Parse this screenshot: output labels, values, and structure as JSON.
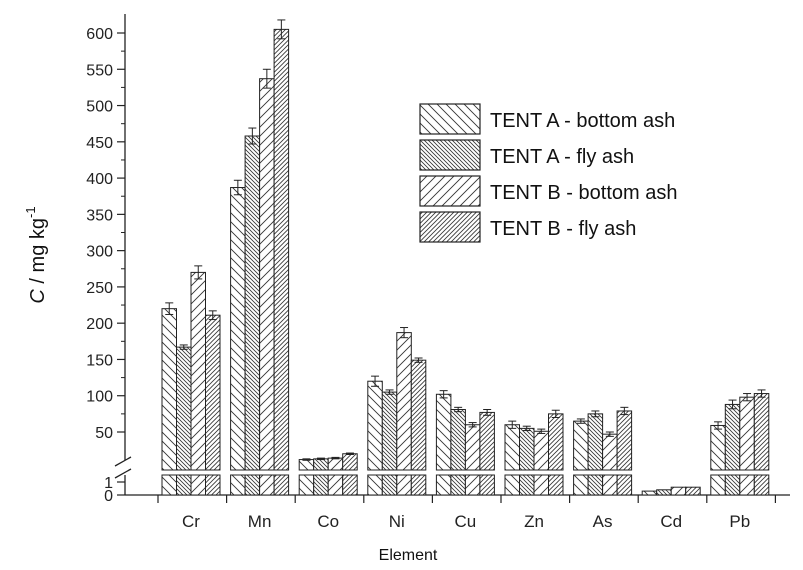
{
  "chart_data": {
    "type": "bar",
    "xlabel": "Element",
    "ylabel": {
      "symbol": "C",
      "sep": " / mg kg",
      "exp": "-1"
    },
    "categories": [
      "Cr",
      "Mn",
      "Co",
      "Ni",
      "Cu",
      "Zn",
      "As",
      "Cd",
      "Pb"
    ],
    "y_ticks_upper": [
      "50",
      "100",
      "150",
      "200",
      "250",
      "300",
      "350",
      "400",
      "450",
      "500",
      "550",
      "600"
    ],
    "y_ticks_lower": [
      "0",
      "1"
    ],
    "y_axis_break": true,
    "ylim": [
      0,
      620
    ],
    "series": [
      {
        "name": "TENT A - bottom ash",
        "values": [
          220,
          387,
          12,
          120,
          102,
          60,
          65,
          0.3,
          59
        ],
        "errors": [
          8,
          10,
          1,
          7,
          5,
          5,
          3,
          0.05,
          5
        ]
      },
      {
        "name": "TENT A - fly ash",
        "values": [
          167,
          458,
          13,
          105,
          81,
          55,
          75,
          0.4,
          88
        ],
        "errors": [
          3,
          11,
          1,
          3,
          3,
          3,
          4,
          0.05,
          6
        ]
      },
      {
        "name": "TENT B - bottom ash",
        "values": [
          270,
          537,
          14,
          187,
          60,
          51,
          47,
          0.6,
          98
        ],
        "errors": [
          9,
          13,
          1,
          7,
          3,
          3,
          3,
          0.05,
          5
        ]
      },
      {
        "name": "TENT B - fly ash",
        "values": [
          211,
          605,
          20,
          149,
          77,
          75,
          79,
          0.6,
          103
        ],
        "errors": [
          6,
          13,
          1,
          3,
          4,
          5,
          5,
          0.05,
          5
        ]
      }
    ],
    "legend_position": "top-right"
  }
}
